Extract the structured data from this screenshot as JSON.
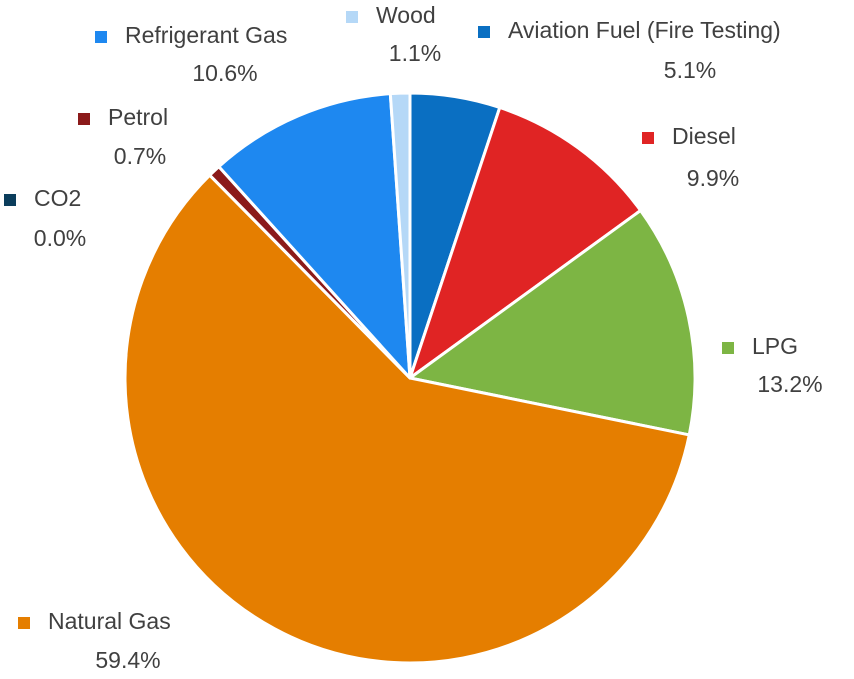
{
  "chart_data": {
    "type": "pie",
    "categories": [
      "Aviation Fuel (Fire Testing)",
      "Diesel",
      "LPG",
      "Natural Gas",
      "CO2",
      "Petrol",
      "Refrigerant Gas",
      "Wood"
    ],
    "values": [
      5.1,
      9.9,
      13.2,
      59.4,
      0.0,
      0.7,
      10.6,
      1.1
    ],
    "value_labels": [
      "5.1%",
      "9.9%",
      "13.2%",
      "59.4%",
      "0.0%",
      "0.7%",
      "10.6%",
      "1.1%"
    ],
    "colors": [
      "#0a6fc2",
      "#e02424",
      "#7db544",
      "#e57e00",
      "#0b3d5c",
      "#8b1a1a",
      "#1e88f0",
      "#b5d8f7"
    ]
  }
}
